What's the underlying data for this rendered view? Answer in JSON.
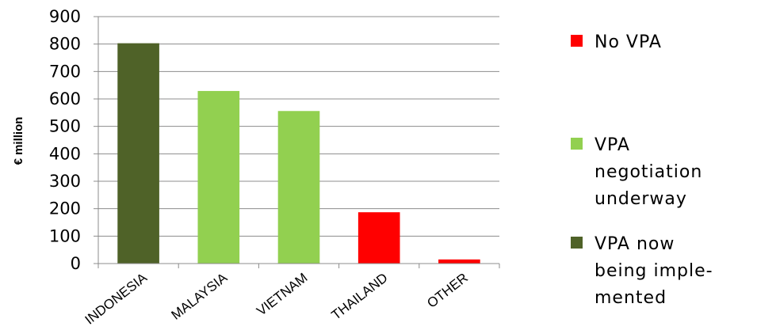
{
  "chart_data": {
    "type": "bar",
    "categories": [
      "INDONESIA",
      "MALAYSIA",
      "VIETNAM",
      "THAILAND",
      "OTHER"
    ],
    "values": [
      803,
      629,
      556,
      187,
      15
    ],
    "status_of_bar": [
      "implemented",
      "negotiation",
      "negotiation",
      "none",
      "none"
    ],
    "ylabel": "€ million",
    "xlabel": "",
    "ylim": [
      0,
      900
    ],
    "yticks": [
      0,
      100,
      200,
      300,
      400,
      500,
      600,
      700,
      800,
      900
    ],
    "grid": true,
    "legend_position": "right",
    "legend": [
      {
        "key": "none",
        "lines": [
          "No VPA"
        ],
        "color": "#ff0000"
      },
      {
        "key": "negotiation",
        "lines": [
          "VPA",
          "negotiation",
          "underway"
        ],
        "color": "#92d050"
      },
      {
        "key": "implemented",
        "lines": [
          "VPA now",
          "being imple-",
          "mented"
        ],
        "color": "#4f6228"
      }
    ]
  }
}
